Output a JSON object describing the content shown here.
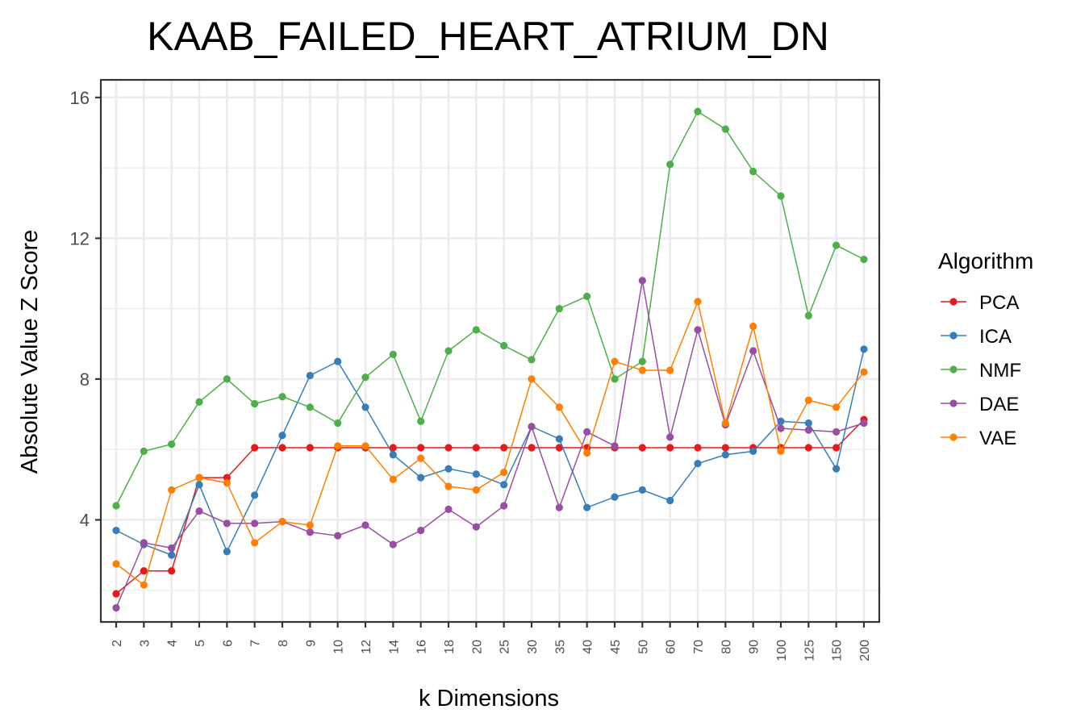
{
  "chart_data": {
    "type": "line",
    "title": "KAAB_FAILED_HEART_ATRIUM_DN",
    "xlabel": "k Dimensions",
    "ylabel": "Absolute Value Z Score",
    "categories": [
      "2",
      "3",
      "4",
      "5",
      "6",
      "7",
      "8",
      "9",
      "10",
      "12",
      "14",
      "16",
      "18",
      "20",
      "25",
      "30",
      "35",
      "40",
      "45",
      "50",
      "60",
      "70",
      "80",
      "90",
      "100",
      "125",
      "150",
      "200"
    ],
    "ylim": [
      1.1,
      16.5
    ],
    "yticks": [
      4,
      8,
      12,
      16
    ],
    "grid": true,
    "legend": {
      "title": "Algorithm",
      "placement": "right"
    },
    "series": [
      {
        "name": "PCA",
        "color": "#e41a1c",
        "values": [
          1.9,
          2.55,
          2.55,
          5.2,
          5.2,
          6.05,
          6.05,
          6.05,
          6.05,
          6.05,
          6.05,
          6.05,
          6.05,
          6.05,
          6.05,
          6.05,
          6.05,
          6.05,
          6.05,
          6.05,
          6.05,
          6.05,
          6.05,
          6.05,
          6.05,
          6.05,
          6.05,
          6.85
        ]
      },
      {
        "name": "ICA",
        "color": "#377eb8",
        "values": [
          3.7,
          3.3,
          3.0,
          5.0,
          3.1,
          4.7,
          6.4,
          8.1,
          8.5,
          7.2,
          5.85,
          5.2,
          5.45,
          5.3,
          5.0,
          6.65,
          6.3,
          4.35,
          4.65,
          4.85,
          4.55,
          5.6,
          5.85,
          5.95,
          6.8,
          6.75,
          5.45,
          8.85
        ]
      },
      {
        "name": "NMF",
        "color": "#4daf4a",
        "values": [
          4.4,
          5.95,
          6.15,
          7.35,
          8.0,
          7.3,
          7.5,
          7.2,
          6.75,
          8.05,
          8.7,
          6.8,
          8.8,
          9.4,
          8.95,
          8.55,
          10.0,
          10.35,
          8.0,
          8.5,
          14.1,
          15.6,
          15.1,
          13.9,
          13.2,
          9.8,
          11.8,
          11.4
        ]
      },
      {
        "name": "DAE",
        "color": "#984ea3",
        "values": [
          1.5,
          3.35,
          3.2,
          4.25,
          3.9,
          3.9,
          3.95,
          3.65,
          3.55,
          3.85,
          3.3,
          3.7,
          4.3,
          3.8,
          4.4,
          6.65,
          4.35,
          6.5,
          6.1,
          10.8,
          6.35,
          9.4,
          6.7,
          8.8,
          6.6,
          6.55,
          6.5,
          6.75
        ]
      },
      {
        "name": "VAE",
        "color": "#ff7f00",
        "values": [
          2.75,
          2.15,
          4.85,
          5.2,
          5.05,
          3.35,
          3.95,
          3.85,
          6.1,
          6.1,
          5.15,
          5.75,
          4.95,
          4.85,
          5.35,
          8.0,
          7.2,
          5.9,
          8.5,
          8.25,
          8.25,
          10.2,
          6.75,
          9.5,
          5.95,
          7.4,
          7.2,
          8.2
        ]
      }
    ]
  }
}
